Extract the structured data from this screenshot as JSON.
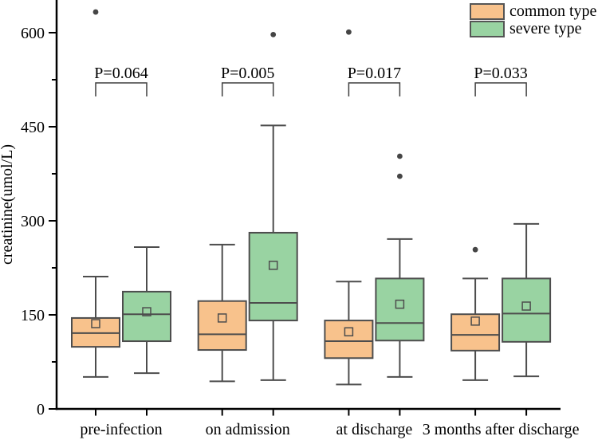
{
  "chart_data": {
    "type": "boxplot",
    "title": "",
    "ylabel": "creatinine(umol/L)",
    "xlabel": "",
    "grid": false,
    "y_axis": {
      "lim": [
        0,
        652
      ],
      "major_ticks": [
        0,
        150,
        300,
        450,
        600
      ],
      "minor_ticks": [
        75,
        225,
        375,
        525
      ]
    },
    "categories": [
      "pre-infection",
      "on admission",
      "at discharge",
      "3 months after discharge"
    ],
    "series": [
      {
        "name": "common type",
        "color": "#F8C28C",
        "boxes": [
          {
            "whisker_low": 51,
            "q1": 99,
            "median": 121,
            "mean": 136,
            "q3": 145,
            "whisker_high": 211,
            "outliers": [
              633
            ]
          },
          {
            "whisker_low": 44,
            "q1": 94,
            "median": 119,
            "mean": 145,
            "q3": 172,
            "whisker_high": 262,
            "outliers": []
          },
          {
            "whisker_low": 39,
            "q1": 81,
            "median": 108,
            "mean": 123,
            "q3": 141,
            "whisker_high": 203,
            "outliers": [
              601
            ]
          },
          {
            "whisker_low": 46,
            "q1": 93,
            "median": 118,
            "mean": 140,
            "q3": 151,
            "whisker_high": 208,
            "outliers": [
              254
            ]
          }
        ]
      },
      {
        "name": "severe type",
        "color": "#99D3A2",
        "boxes": [
          {
            "whisker_low": 57,
            "q1": 108,
            "median": 151,
            "mean": 155,
            "q3": 187,
            "whisker_high": 258,
            "outliers": []
          },
          {
            "whisker_low": 46,
            "q1": 141,
            "median": 169,
            "mean": 229,
            "q3": 281,
            "whisker_high": 452,
            "outliers": [
              597
            ]
          },
          {
            "whisker_low": 51,
            "q1": 109,
            "median": 137,
            "mean": 167,
            "q3": 208,
            "whisker_high": 271,
            "outliers": [
              403,
              371
            ]
          },
          {
            "whisker_low": 52,
            "q1": 107,
            "median": 152,
            "mean": 164,
            "q3": 208,
            "whisker_high": 295,
            "outliers": []
          }
        ]
      }
    ],
    "annotations": [
      {
        "label": "P=0.064",
        "category_index": 0
      },
      {
        "label": "P=0.005",
        "category_index": 1
      },
      {
        "label": "P=0.017",
        "category_index": 2
      },
      {
        "label": "P=0.033",
        "category_index": 3
      }
    ],
    "legend": {
      "position": "top-right"
    },
    "colors": {
      "box_border": "#4d4d4d",
      "outlier": "#454545",
      "bracket": "#3f3f3f",
      "axis": "#000000"
    }
  }
}
